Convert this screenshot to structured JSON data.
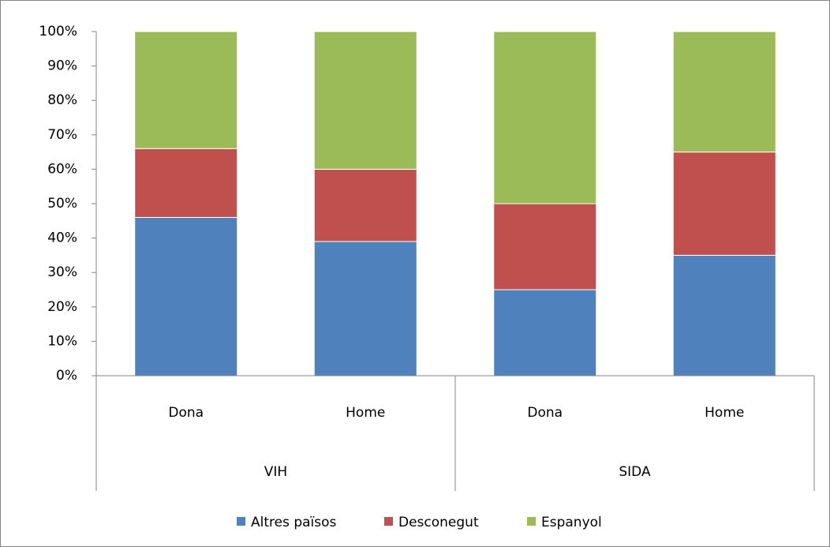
{
  "chart_data": {
    "type": "stacked_bar",
    "categories": [
      "Dona",
      "Home",
      "Dona",
      "Home"
    ],
    "groups": [
      "VIH",
      "SIDA"
    ],
    "series": [
      {
        "name": "Altres països",
        "color": "#4f81bd",
        "values": [
          46,
          39,
          25,
          35
        ]
      },
      {
        "name": "Desconegut",
        "color": "#c0504d",
        "values": [
          20,
          21,
          25,
          30
        ]
      },
      {
        "name": "Espanyol",
        "color": "#9bbb59",
        "values": [
          34,
          40,
          50,
          35
        ]
      }
    ],
    "ylim": [
      0,
      100
    ],
    "yticks": [
      {
        "value": 0,
        "label": "0%"
      },
      {
        "value": 10,
        "label": "10%"
      },
      {
        "value": 20,
        "label": "20%"
      },
      {
        "value": 30,
        "label": "30%"
      },
      {
        "value": 40,
        "label": "40%"
      },
      {
        "value": 50,
        "label": "50%"
      },
      {
        "value": 60,
        "label": "60%"
      },
      {
        "value": 70,
        "label": "70%"
      },
      {
        "value": 80,
        "label": "80%"
      },
      {
        "value": 90,
        "label": "90%"
      },
      {
        "value": 100,
        "label": "100%"
      }
    ],
    "legend": "bottom"
  }
}
